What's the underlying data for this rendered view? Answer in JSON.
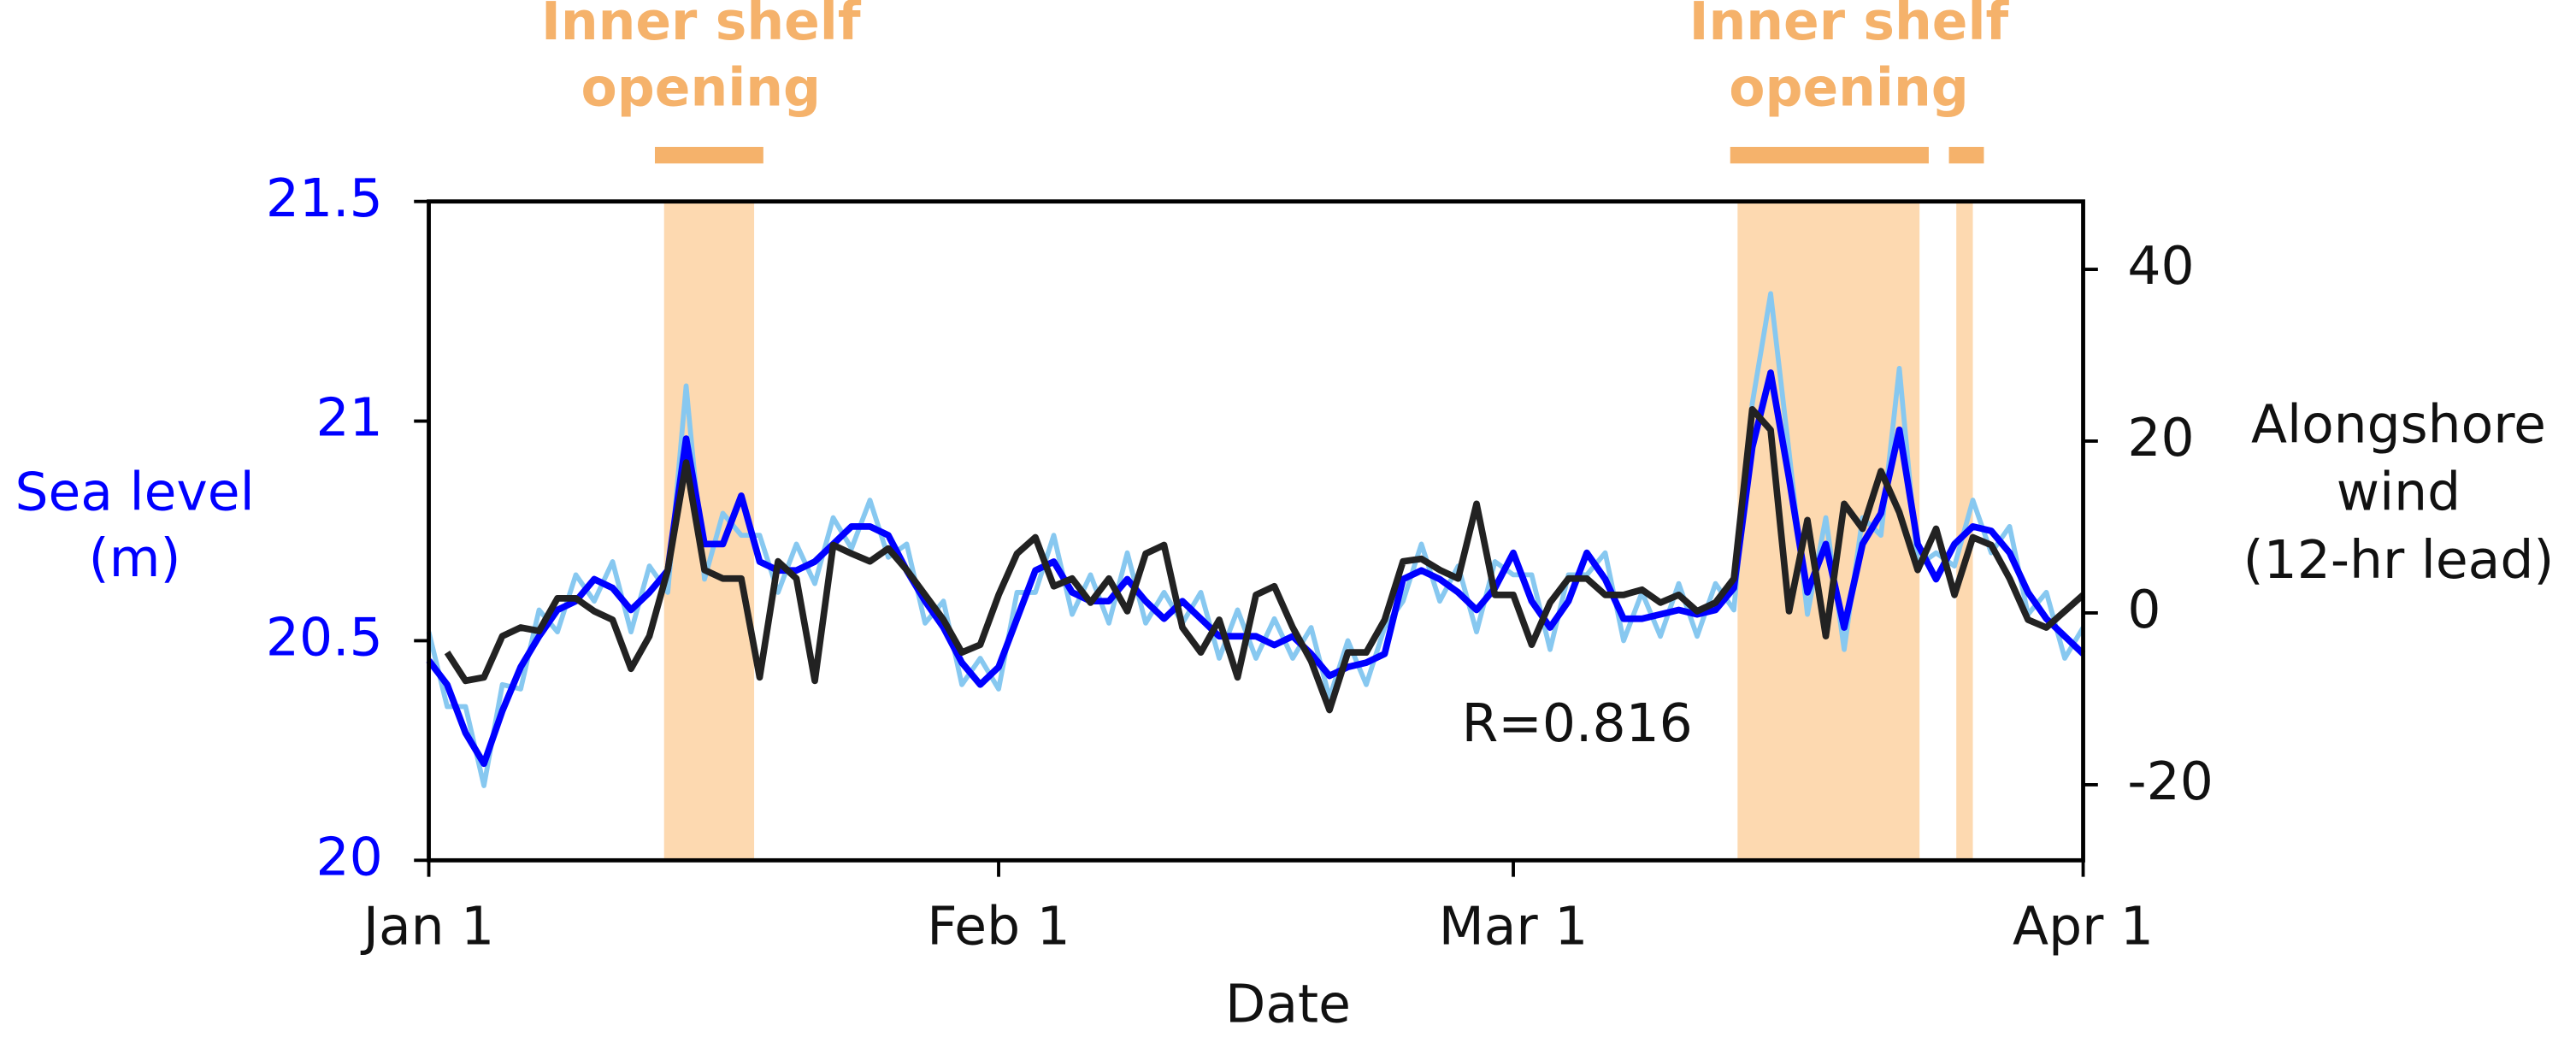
{
  "chart_data": {
    "type": "line",
    "xlabel": "Date",
    "ylabel": [
      "Sea level",
      "(m)"
    ],
    "y2label": [
      "Alongshore",
      "wind",
      "(12-hr lead)"
    ],
    "xlim": [
      0,
      90
    ],
    "xticks": [
      {
        "value": 0,
        "label": "Jan 1"
      },
      {
        "value": 31,
        "label": "Feb 1"
      },
      {
        "value": 59,
        "label": "Mar 1"
      },
      {
        "value": 90,
        "label": "Apr 1"
      }
    ],
    "ylim": [
      20,
      21.5
    ],
    "yticks": [
      20,
      20.5,
      21,
      21.5
    ],
    "y2lim": [
      -28.8,
      47.9
    ],
    "y2ticks": [
      -20,
      0,
      20,
      40
    ],
    "shaded": [
      [
        12.8,
        17.7
      ],
      [
        71.2,
        81.1
      ],
      [
        83.1,
        84.0
      ]
    ],
    "shade_color": "#fdd9b0",
    "annotations": [
      {
        "text": [
          "Inner shelf",
          "opening"
        ],
        "bars": [
          [
            12.3,
            18.2
          ]
        ],
        "color": "#f5b26b"
      },
      {
        "text": [
          "Inner shelf",
          "opening"
        ],
        "bars": [
          [
            70.8,
            81.6
          ],
          [
            82.7,
            84.6
          ]
        ],
        "color": "#f5b26b"
      }
    ],
    "note": "R=0.816",
    "x": [
      0,
      1,
      2,
      3,
      4,
      5,
      6,
      7,
      8,
      9,
      10,
      11,
      12,
      13,
      14,
      15,
      16,
      17,
      18,
      19,
      20,
      21,
      22,
      23,
      24,
      25,
      26,
      27,
      28,
      29,
      30,
      31,
      32,
      33,
      34,
      35,
      36,
      37,
      38,
      39,
      40,
      41,
      42,
      43,
      44,
      45,
      46,
      47,
      48,
      49,
      50,
      51,
      52,
      53,
      54,
      55,
      56,
      57,
      58,
      59,
      60,
      61,
      62,
      63,
      64,
      65,
      66,
      67,
      68,
      69,
      70,
      71,
      72,
      73,
      74,
      75,
      76,
      77,
      78,
      79,
      80,
      81,
      82,
      83,
      84,
      85,
      86,
      87,
      88,
      89,
      90
    ],
    "series": [
      {
        "color": "#87c8f0",
        "width": 3,
        "values": [
          20.52,
          20.35,
          20.35,
          20.17,
          20.4,
          20.39,
          20.57,
          20.52,
          20.65,
          20.59,
          20.68,
          20.52,
          20.67,
          20.61,
          21.08,
          20.64,
          20.79,
          20.74,
          20.74,
          20.61,
          20.72,
          20.63,
          20.78,
          20.71,
          20.82,
          20.69,
          20.72,
          20.54,
          20.59,
          20.4,
          20.46,
          20.39,
          20.61,
          20.61,
          20.74,
          20.56,
          20.65,
          20.54,
          20.7,
          20.54,
          20.61,
          20.54,
          20.61,
          20.46,
          20.57,
          20.46,
          20.55,
          20.46,
          20.53,
          20.37,
          20.5,
          20.4,
          20.53,
          20.59,
          20.72,
          20.59,
          20.67,
          20.52,
          20.68,
          20.65,
          20.65,
          20.48,
          20.65,
          20.65,
          20.7,
          20.5,
          20.61,
          20.51,
          20.63,
          20.51,
          20.63,
          20.57,
          21.04,
          21.29,
          20.93,
          20.56,
          20.78,
          20.48,
          20.78,
          20.74,
          21.12,
          20.67,
          20.7,
          20.67,
          20.82,
          20.7,
          20.76,
          20.56,
          20.61,
          20.46,
          20.53
        ]
      },
      {
        "color": "#0000ff",
        "width": 4,
        "values": [
          20.455,
          20.4,
          20.29,
          20.22,
          20.34,
          20.44,
          20.51,
          20.57,
          20.59,
          20.64,
          20.62,
          20.57,
          20.61,
          20.66,
          20.96,
          20.72,
          20.72,
          20.83,
          20.68,
          20.66,
          20.66,
          20.68,
          20.72,
          20.76,
          20.76,
          20.74,
          20.66,
          20.59,
          20.53,
          20.45,
          20.4,
          20.44,
          20.55,
          20.66,
          20.68,
          20.61,
          20.59,
          20.59,
          20.64,
          20.59,
          20.55,
          20.59,
          20.55,
          20.51,
          20.51,
          20.51,
          20.49,
          20.51,
          20.47,
          20.42,
          20.44,
          20.45,
          20.47,
          20.64,
          20.66,
          20.64,
          20.61,
          20.57,
          20.62,
          20.7,
          20.59,
          20.53,
          20.59,
          20.7,
          20.64,
          20.55,
          20.55,
          20.56,
          20.57,
          20.56,
          20.57,
          20.62,
          20.94,
          21.11,
          20.87,
          20.61,
          20.72,
          20.53,
          20.72,
          20.79,
          20.98,
          20.72,
          20.64,
          20.72,
          20.76,
          20.75,
          20.7,
          20.61,
          20.55,
          20.51,
          20.47
        ]
      },
      {
        "color": "#222222",
        "width": 4,
        "axis": "y2",
        "values": [
          null,
          -4.6,
          -7.9,
          -7.5,
          -2.7,
          -1.7,
          -2.1,
          1.7,
          1.7,
          0.2,
          -0.8,
          -6.5,
          -2.7,
          5.0,
          17.5,
          5.0,
          4.0,
          4.0,
          -7.5,
          6.0,
          4.0,
          -7.9,
          7.9,
          6.9,
          6.0,
          7.5,
          5.0,
          2.1,
          -0.8,
          -4.6,
          -3.7,
          2.1,
          6.9,
          8.8,
          3.1,
          4.0,
          1.2,
          4.0,
          0.2,
          6.9,
          7.9,
          -1.7,
          -4.6,
          -0.8,
          -7.5,
          2.1,
          3.1,
          -1.7,
          -5.6,
          -11.3,
          -4.6,
          -4.6,
          -0.8,
          6.0,
          6.3,
          5.0,
          4.0,
          12.7,
          2.1,
          2.1,
          -3.7,
          1.2,
          4.0,
          4.0,
          2.1,
          2.1,
          2.7,
          1.2,
          2.1,
          0.2,
          1.2,
          4.0,
          23.7,
          21.3,
          0.2,
          10.8,
          -2.7,
          12.7,
          9.8,
          16.5,
          11.7,
          5.0,
          9.8,
          2.1,
          8.8,
          7.9,
          4.0,
          -0.8,
          -1.7,
          0.2,
          2.1
        ]
      }
    ]
  }
}
